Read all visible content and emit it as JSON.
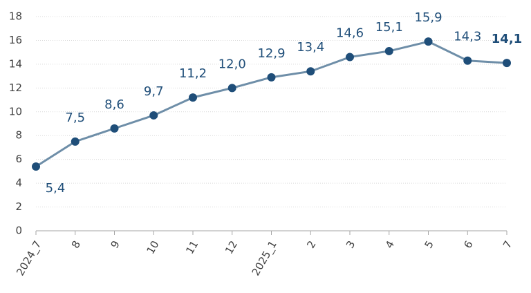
{
  "chart_data": {
    "type": "line",
    "categories": [
      "2024_7",
      "8",
      "9",
      "10",
      "11",
      "12",
      "2025_1",
      "2",
      "3",
      "4",
      "5",
      "6",
      "7"
    ],
    "series": [
      {
        "name": null,
        "color": "#6e8ea8",
        "marker_color": "#1f4e79",
        "values": [
          5.4,
          7.5,
          8.6,
          9.7,
          11.2,
          12.0,
          12.9,
          13.4,
          14.6,
          15.1,
          15.9,
          14.3,
          14.1
        ],
        "value_labels": [
          "5,4",
          "7,5",
          "8,6",
          "9,7",
          "11,2",
          "12,0",
          "12,9",
          "13,4",
          "14,6",
          "15,1",
          "15,9",
          "14,3",
          "14,1"
        ]
      }
    ],
    "ylim": [
      0,
      18
    ],
    "yticks": [
      0,
      2,
      4,
      6,
      8,
      10,
      12,
      14,
      16,
      18
    ],
    "grid": true
  }
}
